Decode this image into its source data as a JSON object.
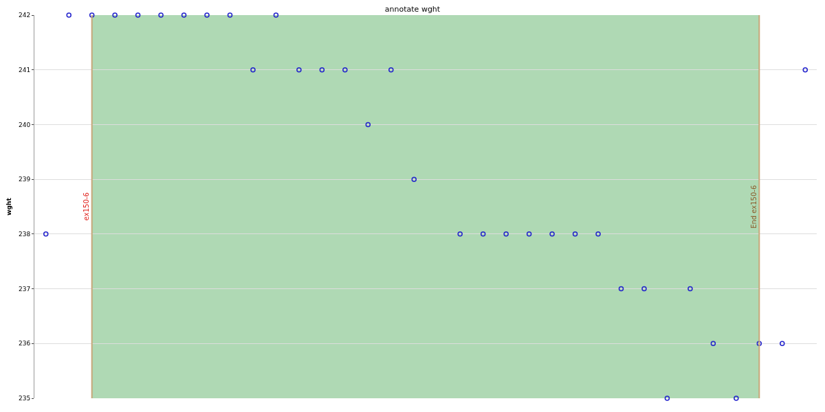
{
  "chart_data": {
    "type": "scatter",
    "title": "annotate wght",
    "ylabel": "wght",
    "categories": [
      null,
      null,
      null,
      null,
      null,
      null,
      null,
      null,
      null,
      null,
      null,
      null,
      null,
      null,
      null,
      null,
      null,
      null,
      null,
      null,
      null,
      null,
      null,
      null,
      null,
      null,
      null,
      null,
      null,
      null,
      null,
      null,
      null,
      null
    ],
    "series": [
      {
        "color": "#2222cc",
        "values": [
          238,
          242,
          242,
          242,
          242,
          242,
          242,
          242,
          242,
          241,
          242,
          241,
          241,
          241,
          240,
          241,
          239,
          null,
          238,
          238,
          238,
          238,
          238,
          238,
          238,
          237,
          237,
          235,
          237,
          236,
          235,
          236,
          236,
          241
        ]
      }
    ],
    "ylim": [
      235,
      242
    ],
    "yticks": [
      235,
      236,
      237,
      238,
      239,
      240,
      241,
      242
    ],
    "tick_labels": "y",
    "grid": "y",
    "marker": "circle",
    "legend": false,
    "annotations": [
      "ex150-6",
      "End ex150-6"
    ]
  }
}
